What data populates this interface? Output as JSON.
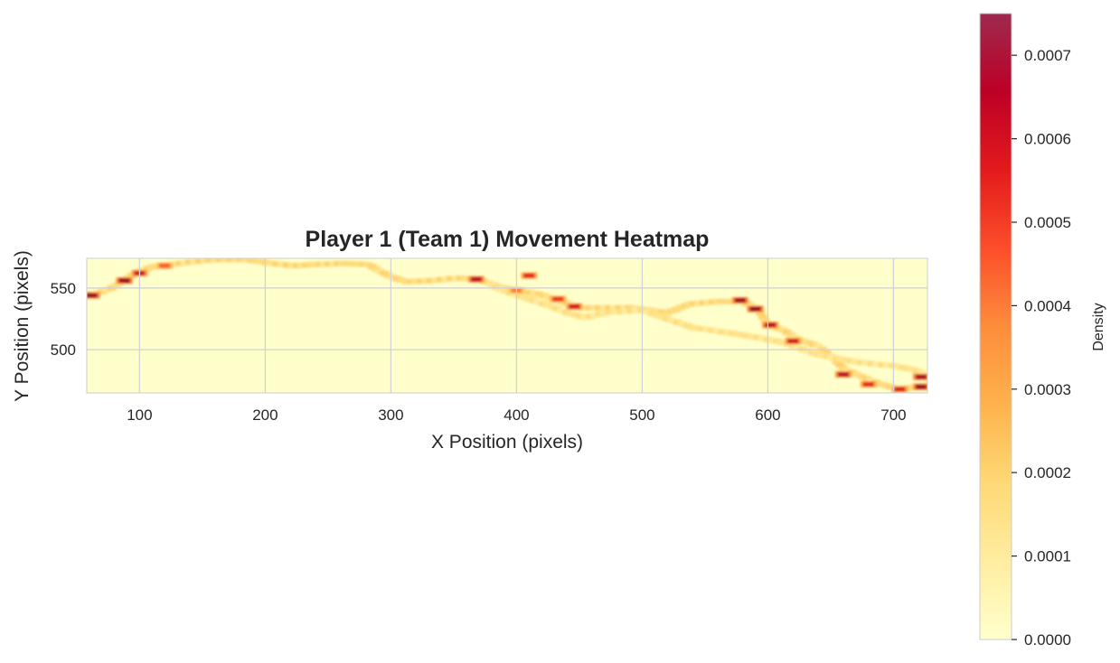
{
  "chart_data": {
    "type": "heatmap",
    "title": "Player 1 (Team 1) Movement Heatmap",
    "xlabel": "X Position (pixels)",
    "ylabel": "Y Position (pixels)",
    "xlim": [
      58,
      727
    ],
    "ylim": [
      465,
      574
    ],
    "xticks": [
      100,
      200,
      300,
      400,
      500,
      600,
      700
    ],
    "yticks": [
      500,
      550
    ],
    "grid": true,
    "colormap": [
      "#ffffcc",
      "#ffeda0",
      "#fed976",
      "#feb24c",
      "#fd8d3c",
      "#fc4e2a",
      "#e31a1c",
      "#bd0026",
      "#800026"
    ],
    "colorbar": {
      "label": "Density",
      "range": [
        0,
        0.00075
      ],
      "ticks": [
        "0.0000",
        "0.0001",
        "0.0002",
        "0.0003",
        "0.0004",
        "0.0005",
        "0.0006",
        "0.0007"
      ]
    },
    "path": [
      [
        60,
        544
      ],
      [
        70,
        547
      ],
      [
        78,
        550
      ],
      [
        87,
        556
      ],
      [
        97,
        562
      ],
      [
        110,
        567
      ],
      [
        125,
        569
      ],
      [
        140,
        571
      ],
      [
        160,
        573
      ],
      [
        185,
        573
      ],
      [
        205,
        570
      ],
      [
        222,
        568
      ],
      [
        240,
        569
      ],
      [
        262,
        570
      ],
      [
        282,
        569
      ],
      [
        298,
        560
      ],
      [
        312,
        555
      ],
      [
        332,
        556
      ],
      [
        352,
        558
      ],
      [
        370,
        557
      ],
      [
        385,
        551
      ],
      [
        400,
        548
      ],
      [
        418,
        545
      ],
      [
        433,
        540
      ],
      [
        450,
        534
      ],
      [
        470,
        534
      ],
      [
        490,
        534
      ],
      [
        505,
        532
      ],
      [
        520,
        530
      ],
      [
        538,
        537
      ],
      [
        560,
        539
      ],
      [
        580,
        539
      ],
      [
        592,
        533
      ],
      [
        600,
        520
      ],
      [
        612,
        516
      ],
      [
        625,
        508
      ],
      [
        640,
        503
      ],
      [
        650,
        495
      ],
      [
        660,
        485
      ],
      [
        675,
        478
      ],
      [
        690,
        472
      ],
      [
        705,
        468
      ],
      [
        720,
        470
      ],
      [
        727,
        472
      ]
    ],
    "path_branch": [
      [
        380,
        552
      ],
      [
        395,
        546
      ],
      [
        410,
        541
      ],
      [
        425,
        536
      ],
      [
        440,
        530
      ],
      [
        455,
        526
      ],
      [
        470,
        530
      ],
      [
        500,
        532
      ],
      [
        540,
        518
      ],
      [
        580,
        512
      ],
      [
        612,
        506
      ],
      [
        640,
        496
      ],
      [
        670,
        490
      ],
      [
        700,
        487
      ],
      [
        715,
        484
      ],
      [
        727,
        480
      ]
    ],
    "hotspots": [
      [
        62,
        544,
        0.00071
      ],
      [
        88,
        556,
        0.00072
      ],
      [
        100,
        562,
        0.0006
      ],
      [
        120,
        568,
        0.00045
      ],
      [
        368,
        557,
        0.00066
      ],
      [
        400,
        548,
        0.0004
      ],
      [
        410,
        560,
        0.00055
      ],
      [
        433,
        541,
        0.00052
      ],
      [
        446,
        535,
        0.0006
      ],
      [
        578,
        540,
        0.0007
      ],
      [
        590,
        533,
        0.00072
      ],
      [
        602,
        520,
        0.00066
      ],
      [
        620,
        507,
        0.0006
      ],
      [
        660,
        480,
        0.00066
      ],
      [
        680,
        472,
        0.00055
      ],
      [
        705,
        468,
        0.00058
      ],
      [
        722,
        470,
        0.00071
      ],
      [
        722,
        478,
        0.00069
      ]
    ]
  }
}
